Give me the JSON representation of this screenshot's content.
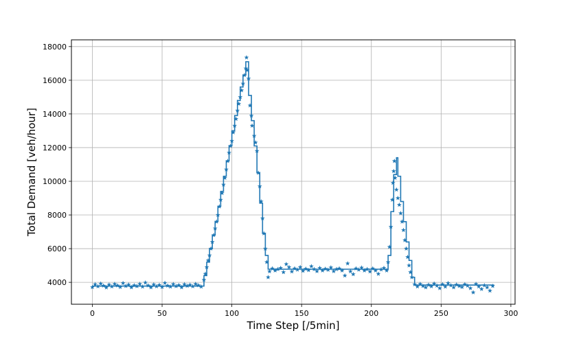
{
  "chart_data": {
    "type": "line",
    "xlabel": "Time Step [/5min]",
    "ylabel": "Total Demand [veh/hour]",
    "xlim": [
      -15,
      303
    ],
    "ylim": [
      2700,
      18400
    ],
    "xticks": [
      0,
      50,
      100,
      150,
      200,
      250,
      300
    ],
    "yticks": [
      4000,
      6000,
      8000,
      10000,
      12000,
      14000,
      16000,
      18000
    ],
    "grid": true,
    "color": "#1f77b4",
    "series": [
      {
        "style": "step",
        "points": [
          [
            0,
            3780
          ],
          [
            80,
            3780
          ],
          [
            80,
            4400
          ],
          [
            82,
            4400
          ],
          [
            82,
            5200
          ],
          [
            84,
            5200
          ],
          [
            84,
            6000
          ],
          [
            86,
            6000
          ],
          [
            86,
            6800
          ],
          [
            88,
            6800
          ],
          [
            88,
            7600
          ],
          [
            90,
            7600
          ],
          [
            90,
            8500
          ],
          [
            92,
            8500
          ],
          [
            92,
            9400
          ],
          [
            94,
            9400
          ],
          [
            94,
            10300
          ],
          [
            96,
            10300
          ],
          [
            96,
            11200
          ],
          [
            98,
            11200
          ],
          [
            98,
            12100
          ],
          [
            100,
            12100
          ],
          [
            100,
            13000
          ],
          [
            102,
            13000
          ],
          [
            102,
            13900
          ],
          [
            104,
            13900
          ],
          [
            104,
            14800
          ],
          [
            106,
            14800
          ],
          [
            106,
            15600
          ],
          [
            108,
            15600
          ],
          [
            108,
            16300
          ],
          [
            110,
            16300
          ],
          [
            110,
            17100
          ],
          [
            112,
            17100
          ],
          [
            112,
            15100
          ],
          [
            114,
            15100
          ],
          [
            114,
            13600
          ],
          [
            116,
            13600
          ],
          [
            116,
            12100
          ],
          [
            118,
            12100
          ],
          [
            118,
            10500
          ],
          [
            120,
            10500
          ],
          [
            120,
            8700
          ],
          [
            122,
            8700
          ],
          [
            122,
            6900
          ],
          [
            124,
            6900
          ],
          [
            124,
            5600
          ],
          [
            126,
            5600
          ],
          [
            126,
            4780
          ],
          [
            212,
            4780
          ],
          [
            212,
            5600
          ],
          [
            214,
            5600
          ],
          [
            214,
            8200
          ],
          [
            216,
            8200
          ],
          [
            216,
            10400
          ],
          [
            218,
            10400
          ],
          [
            218,
            11400
          ],
          [
            219,
            11400
          ],
          [
            219,
            10300
          ],
          [
            221,
            10300
          ],
          [
            221,
            8800
          ],
          [
            223,
            8800
          ],
          [
            223,
            7600
          ],
          [
            225,
            7600
          ],
          [
            225,
            6400
          ],
          [
            227,
            6400
          ],
          [
            227,
            5300
          ],
          [
            229,
            5300
          ],
          [
            229,
            4300
          ],
          [
            231,
            4300
          ],
          [
            231,
            3840
          ],
          [
            288,
            3840
          ]
        ]
      },
      {
        "style": "markers",
        "marker": "star",
        "points": [
          [
            0,
            3710
          ],
          [
            2,
            3880
          ],
          [
            4,
            3760
          ],
          [
            6,
            3920
          ],
          [
            8,
            3800
          ],
          [
            10,
            3690
          ],
          [
            12,
            3860
          ],
          [
            14,
            3750
          ],
          [
            16,
            3900
          ],
          [
            18,
            3810
          ],
          [
            20,
            3720
          ],
          [
            22,
            3950
          ],
          [
            24,
            3780
          ],
          [
            26,
            3860
          ],
          [
            28,
            3700
          ],
          [
            30,
            3820
          ],
          [
            32,
            3770
          ],
          [
            34,
            3900
          ],
          [
            36,
            3740
          ],
          [
            38,
            3980
          ],
          [
            40,
            3810
          ],
          [
            42,
            3700
          ],
          [
            44,
            3870
          ],
          [
            46,
            3760
          ],
          [
            48,
            3840
          ],
          [
            50,
            3720
          ],
          [
            52,
            3960
          ],
          [
            54,
            3800
          ],
          [
            56,
            3740
          ],
          [
            58,
            3890
          ],
          [
            60,
            3770
          ],
          [
            62,
            3830
          ],
          [
            64,
            3700
          ],
          [
            66,
            3880
          ],
          [
            68,
            3790
          ],
          [
            70,
            3850
          ],
          [
            72,
            3760
          ],
          [
            74,
            3900
          ],
          [
            76,
            3820
          ],
          [
            78,
            3740
          ],
          [
            80,
            4150
          ],
          [
            81,
            4500
          ],
          [
            82,
            4900
          ],
          [
            83,
            5300
          ],
          [
            84,
            5600
          ],
          [
            85,
            6000
          ],
          [
            86,
            6400
          ],
          [
            87,
            6800
          ],
          [
            88,
            7200
          ],
          [
            89,
            7600
          ],
          [
            90,
            8000
          ],
          [
            91,
            8500
          ],
          [
            92,
            8900
          ],
          [
            93,
            9300
          ],
          [
            94,
            9800
          ],
          [
            95,
            10200
          ],
          [
            96,
            10700
          ],
          [
            97,
            11200
          ],
          [
            98,
            11700
          ],
          [
            99,
            12100
          ],
          [
            100,
            12400
          ],
          [
            101,
            12900
          ],
          [
            102,
            13300
          ],
          [
            103,
            13700
          ],
          [
            104,
            14200
          ],
          [
            105,
            14600
          ],
          [
            106,
            15000
          ],
          [
            107,
            15400
          ],
          [
            108,
            15800
          ],
          [
            109,
            16300
          ],
          [
            110,
            16700
          ],
          [
            110.5,
            17350
          ],
          [
            111,
            16600
          ],
          [
            112,
            16100
          ],
          [
            113,
            14500
          ],
          [
            114,
            13900
          ],
          [
            114.5,
            13300
          ],
          [
            116,
            12700
          ],
          [
            117,
            12300
          ],
          [
            118,
            11800
          ],
          [
            119,
            10500
          ],
          [
            120,
            9700
          ],
          [
            121,
            8800
          ],
          [
            122,
            7800
          ],
          [
            123,
            6900
          ],
          [
            124,
            6000
          ],
          [
            125,
            5200
          ],
          [
            126,
            4300
          ],
          [
            127,
            4650
          ],
          [
            129,
            4820
          ],
          [
            131,
            4700
          ],
          [
            133,
            4780
          ],
          [
            135,
            4850
          ],
          [
            137,
            4600
          ],
          [
            139,
            5080
          ],
          [
            141,
            4900
          ],
          [
            143,
            4640
          ],
          [
            145,
            4820
          ],
          [
            147,
            4750
          ],
          [
            149,
            4900
          ],
          [
            151,
            4680
          ],
          [
            153,
            4800
          ],
          [
            155,
            4720
          ],
          [
            157,
            4950
          ],
          [
            159,
            4780
          ],
          [
            161,
            4660
          ],
          [
            163,
            4850
          ],
          [
            165,
            4700
          ],
          [
            167,
            4800
          ],
          [
            169,
            4740
          ],
          [
            171,
            4880
          ],
          [
            173,
            4660
          ],
          [
            175,
            4780
          ],
          [
            177,
            4820
          ],
          [
            179,
            4700
          ],
          [
            181,
            4400
          ],
          [
            183,
            5120
          ],
          [
            185,
            4650
          ],
          [
            187,
            4480
          ],
          [
            189,
            4820
          ],
          [
            191,
            4750
          ],
          [
            193,
            4870
          ],
          [
            195,
            4700
          ],
          [
            197,
            4780
          ],
          [
            199,
            4640
          ],
          [
            201,
            4820
          ],
          [
            203,
            4700
          ],
          [
            205,
            4500
          ],
          [
            207,
            4760
          ],
          [
            209,
            4850
          ],
          [
            211,
            4700
          ],
          [
            212,
            5200
          ],
          [
            213,
            6100
          ],
          [
            214,
            7300
          ],
          [
            215,
            8900
          ],
          [
            215.5,
            9900
          ],
          [
            216,
            10600
          ],
          [
            216.5,
            11200
          ],
          [
            217,
            10200
          ],
          [
            218,
            9500
          ],
          [
            219,
            9000
          ],
          [
            220,
            8600
          ],
          [
            221,
            8100
          ],
          [
            222,
            7600
          ],
          [
            223,
            7100
          ],
          [
            224,
            6500
          ],
          [
            225,
            6000
          ],
          [
            226,
            5500
          ],
          [
            227,
            5000
          ],
          [
            228,
            4600
          ],
          [
            229,
            4300
          ],
          [
            231,
            3880
          ],
          [
            233,
            3750
          ],
          [
            235,
            3900
          ],
          [
            237,
            3780
          ],
          [
            239,
            3700
          ],
          [
            241,
            3850
          ],
          [
            243,
            3760
          ],
          [
            245,
            3920
          ],
          [
            247,
            3800
          ],
          [
            249,
            3650
          ],
          [
            251,
            3880
          ],
          [
            253,
            3740
          ],
          [
            255,
            3950
          ],
          [
            257,
            3820
          ],
          [
            259,
            3700
          ],
          [
            261,
            3860
          ],
          [
            263,
            3780
          ],
          [
            265,
            3720
          ],
          [
            267,
            3880
          ],
          [
            269,
            3800
          ],
          [
            271,
            3650
          ],
          [
            273,
            3400
          ],
          [
            275,
            3900
          ],
          [
            277,
            3750
          ],
          [
            279,
            3600
          ],
          [
            281,
            3820
          ],
          [
            283,
            3700
          ],
          [
            285,
            3500
          ],
          [
            287,
            3780
          ]
        ]
      }
    ]
  }
}
